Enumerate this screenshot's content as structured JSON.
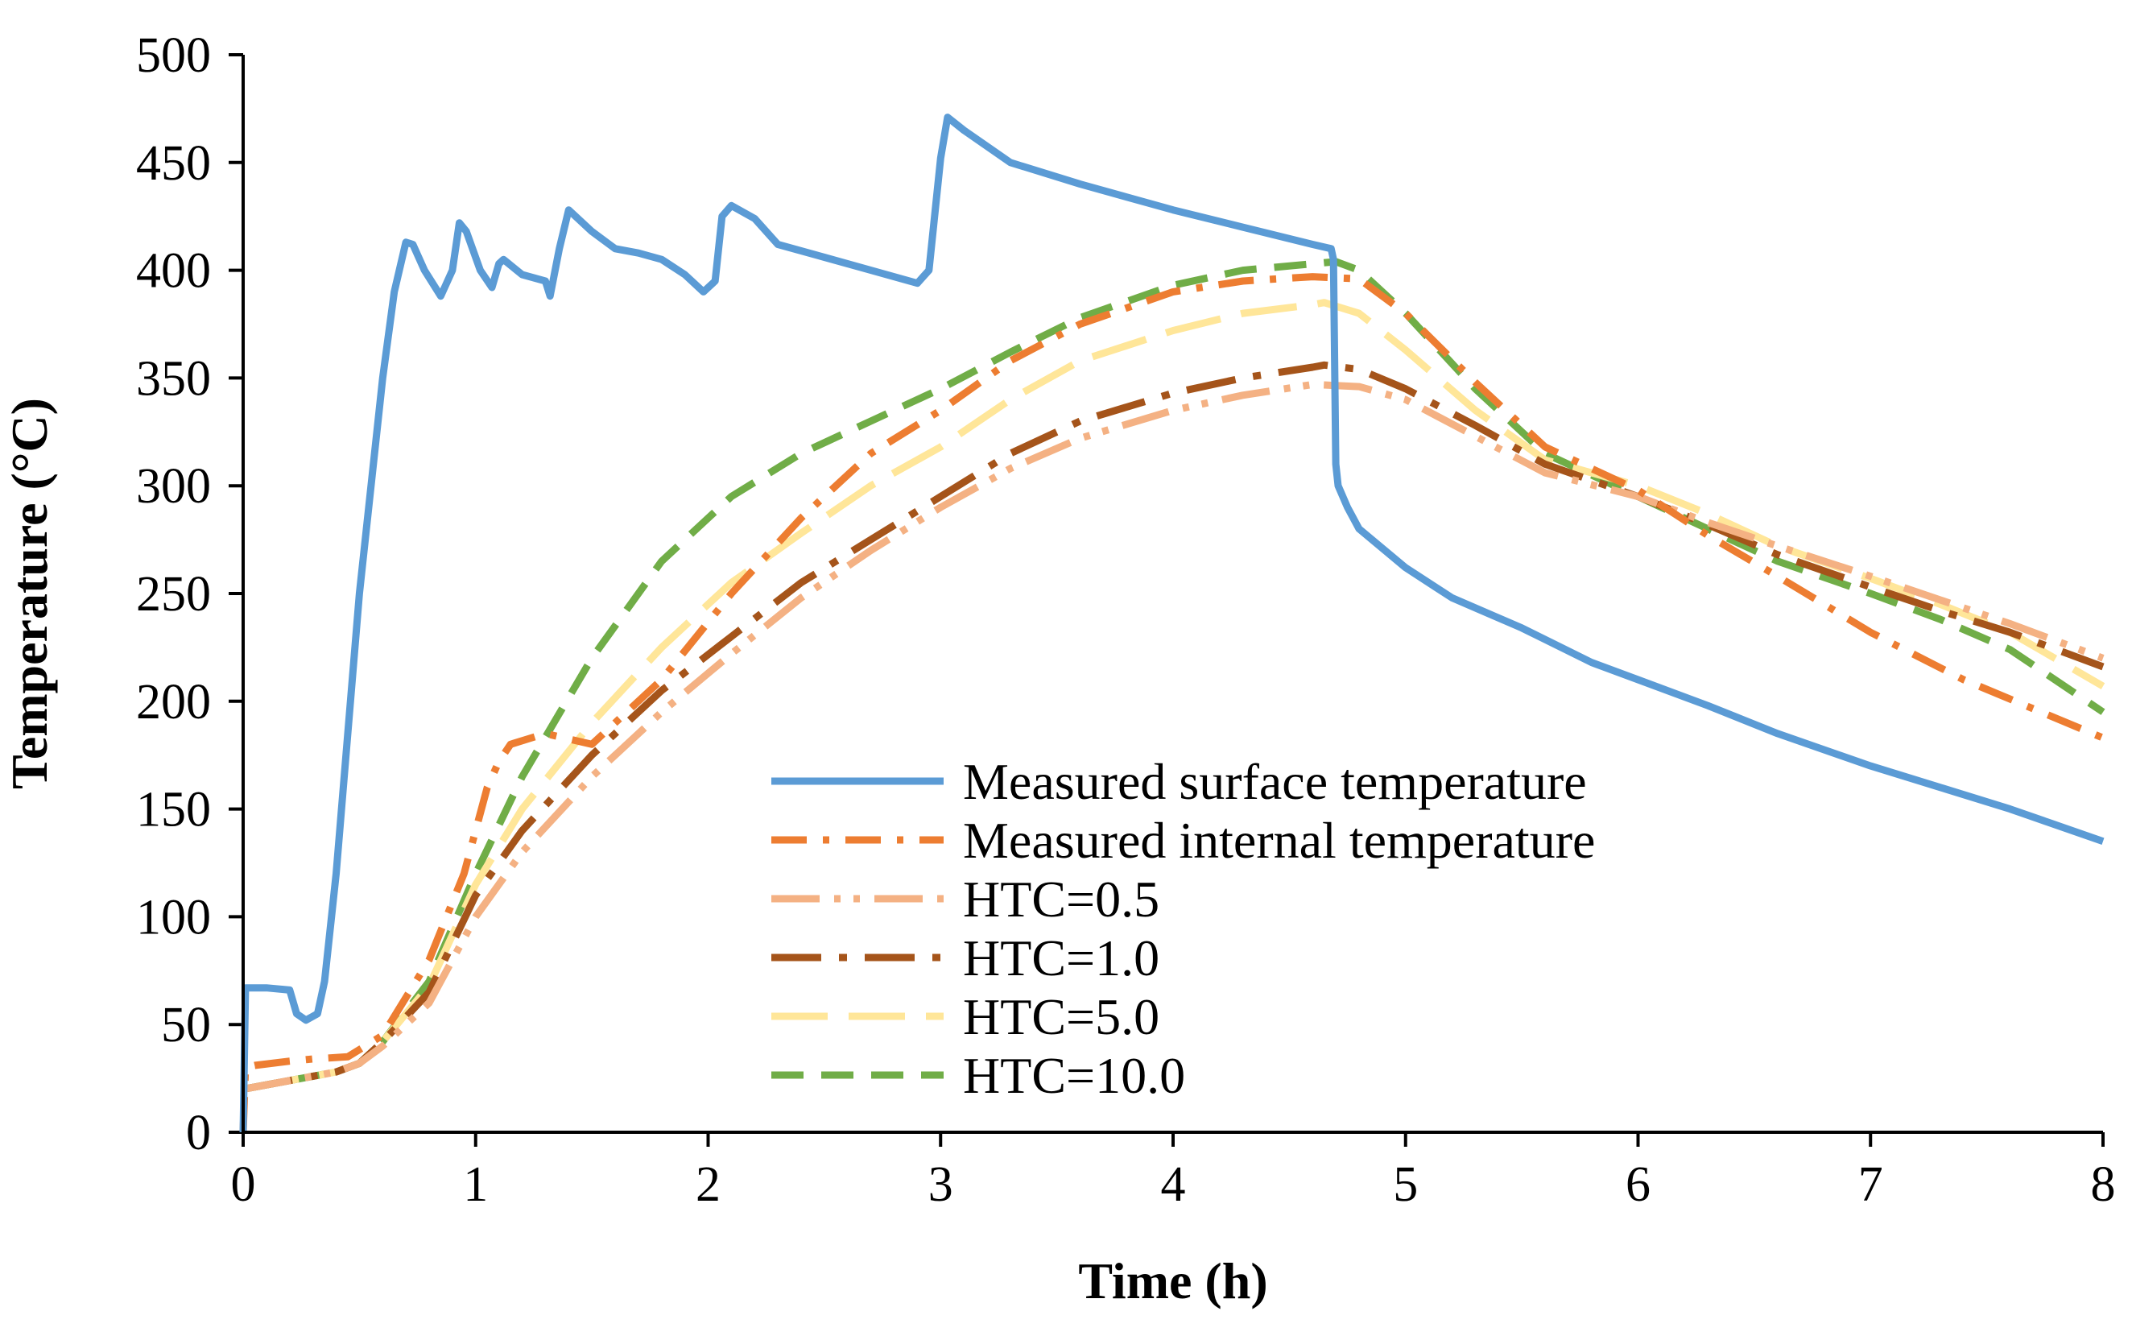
{
  "chart_data": {
    "type": "line",
    "title": "",
    "xlabel": "Time (h)",
    "ylabel": "Temperature (°C)",
    "xlim": [
      0,
      8
    ],
    "ylim": [
      0,
      500
    ],
    "xticks": [
      0,
      1,
      2,
      3,
      4,
      5,
      6,
      7,
      8
    ],
    "yticks": [
      0,
      50,
      100,
      150,
      200,
      250,
      300,
      350,
      400,
      450,
      500
    ],
    "grid": false,
    "legend_position": "lower-center",
    "series": [
      {
        "name": "Measured surface temperature",
        "color": "#5B9BD5",
        "style": "solid",
        "x": [
          0,
          0.01,
          0.05,
          0.1,
          0.2,
          0.23,
          0.27,
          0.32,
          0.35,
          0.4,
          0.5,
          0.6,
          0.65,
          0.7,
          0.73,
          0.78,
          0.85,
          0.9,
          0.93,
          0.96,
          1.02,
          1.07,
          1.1,
          1.12,
          1.2,
          1.3,
          1.32,
          1.36,
          1.4,
          1.5,
          1.6,
          1.7,
          1.8,
          1.9,
          1.98,
          2.03,
          2.06,
          2.1,
          2.2,
          2.3,
          2.5,
          2.7,
          2.9,
          2.95,
          3.0,
          3.03,
          3.1,
          3.3,
          3.6,
          4.0,
          4.3,
          4.6,
          4.68,
          4.69,
          4.7,
          4.71,
          4.75,
          4.8,
          5.0,
          5.2,
          5.5,
          5.8,
          6.0,
          6.3,
          6.6,
          7.0,
          7.3,
          7.6,
          8.0
        ],
        "values": [
          0,
          67,
          67,
          67,
          66,
          55,
          52,
          55,
          70,
          120,
          250,
          350,
          390,
          413,
          412,
          400,
          388,
          400,
          422,
          418,
          400,
          392,
          403,
          405,
          398,
          395,
          388,
          410,
          428,
          418,
          410,
          408,
          405,
          398,
          390,
          395,
          425,
          430,
          424,
          412,
          406,
          400,
          394,
          400,
          452,
          471,
          465,
          450,
          440,
          428,
          420,
          412,
          410,
          405,
          310,
          300,
          290,
          280,
          262,
          248,
          234,
          218,
          210,
          198,
          185,
          170,
          160,
          150,
          135
        ]
      },
      {
        "name": "Measured internal temperature",
        "color": "#ED7D31",
        "style": "dash-dot",
        "x": [
          0,
          0.01,
          0.05,
          0.2,
          0.3,
          0.45,
          0.6,
          0.8,
          0.95,
          1.05,
          1.1,
          1.15,
          1.3,
          1.5,
          1.8,
          2.1,
          2.4,
          2.7,
          3.0,
          3.3,
          3.6,
          4.0,
          4.3,
          4.6,
          4.8,
          5.0,
          5.3,
          5.6,
          6.0,
          6.3,
          6.6,
          7.0,
          7.4,
          8.0
        ],
        "values": [
          0,
          30,
          31,
          33,
          34,
          35,
          45,
          80,
          120,
          160,
          172,
          180,
          185,
          180,
          210,
          250,
          285,
          315,
          335,
          358,
          375,
          390,
          395,
          397,
          396,
          380,
          348,
          318,
          298,
          277,
          258,
          232,
          210,
          183
        ]
      },
      {
        "name": "HTC=0.5",
        "color": "#F4B183",
        "style": "long-dash-dot-dot",
        "x": [
          0,
          0.2,
          0.4,
          0.5,
          0.6,
          0.8,
          1.0,
          1.2,
          1.5,
          1.8,
          2.1,
          2.4,
          2.7,
          3.0,
          3.3,
          3.6,
          4.0,
          4.3,
          4.6,
          4.8,
          5.0,
          5.3,
          5.6,
          6.0,
          6.3,
          6.6,
          7.0,
          7.3,
          7.6,
          8.0
        ],
        "values": [
          20,
          24,
          28,
          32,
          40,
          60,
          100,
          130,
          165,
          195,
          222,
          248,
          270,
          290,
          308,
          322,
          335,
          342,
          347,
          346,
          340,
          323,
          306,
          295,
          283,
          272,
          258,
          247,
          236,
          220
        ]
      },
      {
        "name": "HTC=1.0",
        "color": "#A5541A",
        "style": "long-dash-dot",
        "x": [
          0,
          0.2,
          0.4,
          0.5,
          0.6,
          0.8,
          1.0,
          1.2,
          1.5,
          1.8,
          2.1,
          2.4,
          2.7,
          3.0,
          3.3,
          3.6,
          4.0,
          4.3,
          4.6,
          4.65,
          4.8,
          5.0,
          5.3,
          5.6,
          6.0,
          6.3,
          6.6,
          7.0,
          7.3,
          7.6,
          8.0
        ],
        "values": [
          20,
          24,
          28,
          32,
          42,
          65,
          110,
          140,
          175,
          205,
          230,
          255,
          275,
          295,
          315,
          330,
          343,
          350,
          355,
          356,
          354,
          345,
          328,
          310,
          295,
          282,
          268,
          253,
          242,
          232,
          216
        ]
      },
      {
        "name": "HTC=5.0",
        "color": "#FFE699",
        "style": "long-dash",
        "x": [
          0,
          0.2,
          0.4,
          0.5,
          0.6,
          0.8,
          1.0,
          1.2,
          1.5,
          1.8,
          2.1,
          2.4,
          2.7,
          3.0,
          3.3,
          3.6,
          4.0,
          4.3,
          4.6,
          4.65,
          4.8,
          5.0,
          5.3,
          5.6,
          6.0,
          6.3,
          6.6,
          7.0,
          7.3,
          7.6,
          8.0
        ],
        "values": [
          20,
          24,
          28,
          32,
          42,
          68,
          115,
          150,
          190,
          225,
          255,
          278,
          300,
          318,
          340,
          358,
          372,
          380,
          384,
          385,
          380,
          363,
          335,
          312,
          300,
          287,
          272,
          257,
          245,
          232,
          207
        ]
      },
      {
        "name": "HTC=10.0",
        "color": "#70AD47",
        "style": "dash",
        "x": [
          0,
          0.2,
          0.4,
          0.5,
          0.6,
          0.8,
          1.0,
          1.2,
          1.5,
          1.8,
          2.1,
          2.4,
          2.7,
          3.0,
          3.3,
          3.6,
          4.0,
          4.3,
          4.6,
          4.7,
          4.8,
          5.0,
          5.3,
          5.6,
          6.0,
          6.3,
          6.6,
          7.0,
          7.3,
          7.6,
          8.0
        ],
        "values": [
          20,
          24,
          28,
          32,
          42,
          70,
          120,
          165,
          220,
          265,
          295,
          315,
          330,
          345,
          362,
          378,
          393,
          400,
          403,
          404,
          400,
          380,
          345,
          315,
          295,
          280,
          265,
          250,
          238,
          224,
          195
        ]
      }
    ]
  }
}
